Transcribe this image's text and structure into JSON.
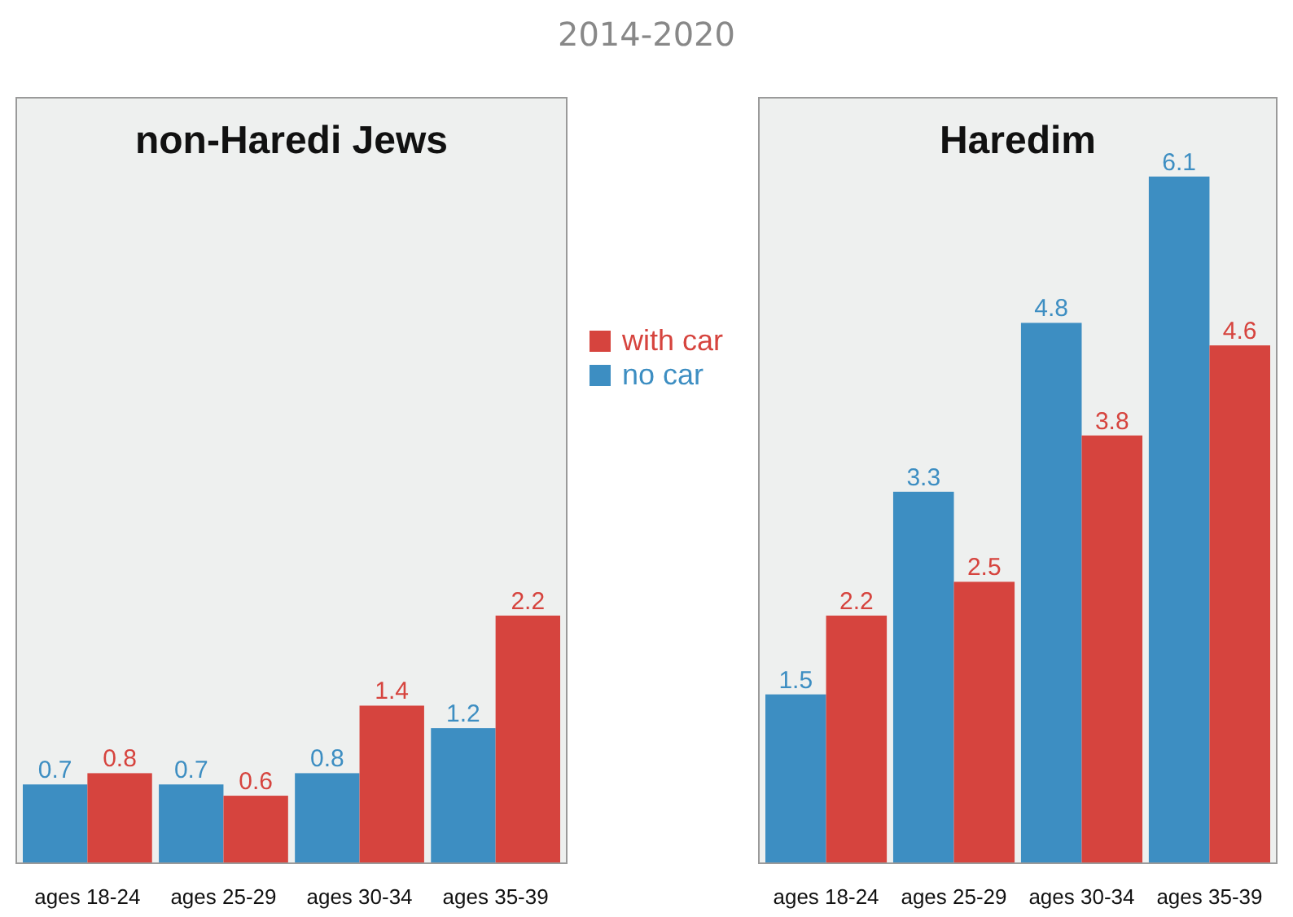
{
  "chart_data": [
    {
      "type": "bar",
      "title": "non-Haredi Jews",
      "annotations": [
        "2014-2020"
      ],
      "categories": [
        "ages 18-24",
        "ages 25-29",
        "ages 30-34",
        "ages 35-39"
      ],
      "series": [
        {
          "name": "no car",
          "color": "#3d8ec2",
          "values": [
            0.7,
            0.7,
            0.8,
            1.2
          ]
        },
        {
          "name": "with car",
          "color": "#d6443e",
          "values": [
            0.8,
            0.6,
            1.4,
            2.2
          ]
        }
      ],
      "ylim": [
        0,
        6.8
      ],
      "tick_labels": "x",
      "data_labels": true,
      "legend": "right"
    },
    {
      "type": "bar",
      "title": "Haredim",
      "categories": [
        "ages 18-24",
        "ages 25-29",
        "ages 30-34",
        "ages 35-39"
      ],
      "series": [
        {
          "color": "#3d8ec2",
          "values": [
            1.5,
            3.3,
            4.8,
            6.1
          ]
        },
        {
          "color": "#d6443e",
          "values": [
            2.2,
            2.5,
            3.8,
            4.6
          ]
        }
      ],
      "ylim": [
        0,
        6.8
      ],
      "tick_labels": "x",
      "data_labels": true,
      "legend": false
    }
  ]
}
